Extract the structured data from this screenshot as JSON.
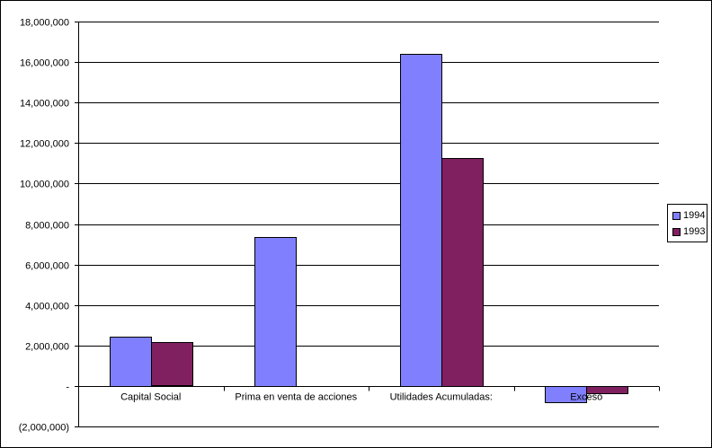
{
  "chart_data": {
    "type": "bar",
    "categories": [
      "Capital Social",
      "Prima en venta de acciones",
      "Utilidades Acumuladas:",
      "Exceso"
    ],
    "series": [
      {
        "name": "1994",
        "values": [
          2450000,
          7350000,
          16400000,
          -800000
        ],
        "color": "#8080ff"
      },
      {
        "name": "1993",
        "values": [
          2150000,
          0,
          11250000,
          -350000
        ],
        "color": "#802060"
      }
    ],
    "ylim": [
      -2000000,
      18000000
    ],
    "ytick_values": [
      -2000000,
      0,
      2000000,
      4000000,
      6000000,
      8000000,
      10000000,
      12000000,
      14000000,
      16000000,
      18000000
    ],
    "ytick_labels": [
      "(2,000,000)",
      "-",
      "2,000,000",
      "4,000,000",
      "6,000,000",
      "8,000,000",
      "10,000,000",
      "12,000,000",
      "14,000,000",
      "16,000,000",
      "18,000,000"
    ],
    "grid": true,
    "legend_position": "right",
    "title": "",
    "xlabel": "",
    "ylabel": ""
  }
}
